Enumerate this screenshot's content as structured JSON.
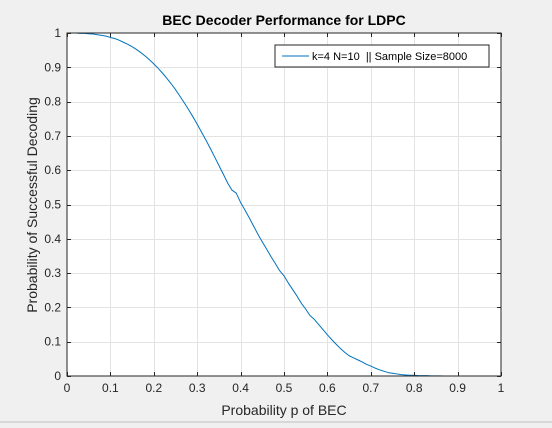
{
  "chart_data": {
    "type": "line",
    "title": "BEC Decoder Performance for LDPC",
    "xlabel": "Probability p of BEC",
    "ylabel": "Probability of Successful Decoding",
    "xlim": [
      0,
      1
    ],
    "ylim": [
      0,
      1
    ],
    "xticks": [
      0,
      0.1,
      0.2,
      0.3,
      0.4,
      0.5,
      0.6,
      0.7,
      0.8,
      0.9,
      1
    ],
    "yticks": [
      0,
      0.1,
      0.2,
      0.3,
      0.4,
      0.5,
      0.6,
      0.7,
      0.8,
      0.9,
      1
    ],
    "xtick_labels": [
      "0",
      "0.1",
      "0.2",
      "0.3",
      "0.4",
      "0.5",
      "0.6",
      "0.7",
      "0.8",
      "0.9",
      "1"
    ],
    "ytick_labels": [
      "0",
      "0.1",
      "0.2",
      "0.3",
      "0.4",
      "0.5",
      "0.6",
      "0.7",
      "0.8",
      "0.9",
      "1"
    ],
    "grid": true,
    "legend": {
      "placement": "top-right",
      "entries": [
        "k=4 N=10  || Sample Size=8000"
      ]
    },
    "series": [
      {
        "name": "k=4 N=10  || Sample Size=8000",
        "color": "#0072bd",
        "x": [
          0,
          0.01,
          0.02,
          0.03,
          0.04,
          0.05,
          0.06,
          0.07,
          0.08,
          0.09,
          0.1,
          0.11,
          0.12,
          0.13,
          0.14,
          0.15,
          0.16,
          0.17,
          0.18,
          0.19,
          0.2,
          0.21,
          0.22,
          0.23,
          0.24,
          0.25,
          0.26,
          0.27,
          0.28,
          0.29,
          0.3,
          0.31,
          0.32,
          0.33,
          0.34,
          0.35,
          0.36,
          0.37,
          0.38,
          0.39,
          0.4,
          0.41,
          0.42,
          0.43,
          0.44,
          0.45,
          0.46,
          0.47,
          0.48,
          0.49,
          0.5,
          0.51,
          0.52,
          0.53,
          0.54,
          0.55,
          0.56,
          0.57,
          0.58,
          0.59,
          0.6,
          0.61,
          0.62,
          0.63,
          0.64,
          0.65,
          0.66,
          0.67,
          0.68,
          0.69,
          0.7,
          0.71,
          0.72,
          0.73,
          0.74,
          0.75,
          0.76,
          0.77,
          0.78,
          0.79,
          0.8,
          0.81,
          0.82,
          0.83,
          0.84,
          0.85,
          0.86,
          0.87,
          0.88,
          0.89,
          0.9,
          0.91,
          0.92,
          0.93,
          0.94,
          0.95,
          0.96,
          0.97,
          0.98,
          0.99,
          1.0
        ],
        "values": [
          1.0,
          1.0,
          1.0,
          0.999,
          0.999,
          0.998,
          0.997,
          0.995,
          0.993,
          0.991,
          0.987,
          0.984,
          0.979,
          0.973,
          0.967,
          0.96,
          0.952,
          0.943,
          0.933,
          0.922,
          0.91,
          0.897,
          0.883,
          0.868,
          0.852,
          0.835,
          0.816,
          0.797,
          0.777,
          0.756,
          0.734,
          0.711,
          0.688,
          0.664,
          0.639,
          0.614,
          0.589,
          0.563,
          0.542,
          0.533,
          0.506,
          0.484,
          0.461,
          0.437,
          0.413,
          0.391,
          0.37,
          0.348,
          0.328,
          0.307,
          0.292,
          0.271,
          0.252,
          0.233,
          0.212,
          0.195,
          0.176,
          0.165,
          0.15,
          0.135,
          0.12,
          0.106,
          0.093,
          0.08,
          0.069,
          0.059,
          0.053,
          0.047,
          0.041,
          0.034,
          0.029,
          0.023,
          0.018,
          0.014,
          0.01,
          0.008,
          0.006,
          0.004,
          0.003,
          0.002,
          0.002,
          0.001,
          0.001,
          0.001,
          0.0005,
          0.0003,
          0.0002,
          0.0001,
          0,
          0,
          0,
          0,
          0,
          0,
          0,
          0,
          0,
          0,
          0,
          0,
          0
        ]
      }
    ]
  }
}
